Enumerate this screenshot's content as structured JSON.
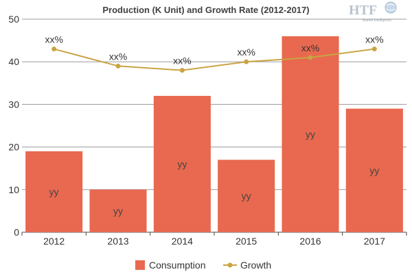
{
  "logo": {
    "text": "HTF",
    "subtitle": "Market Intelligence"
  },
  "chart_data": {
    "type": "bar",
    "title": "Production (K Unit) and Growth Rate (2012-2017)",
    "categories": [
      "2012",
      "2013",
      "2014",
      "2015",
      "2016",
      "2017"
    ],
    "ylim": [
      0,
      50
    ],
    "yticks": [
      0,
      10,
      20,
      30,
      40,
      50
    ],
    "grid": true,
    "legend_position": "bottom",
    "series": [
      {
        "name": "Consumption",
        "type": "bar",
        "color": "#e8694f",
        "values": [
          19,
          10,
          32,
          17,
          46,
          29
        ],
        "labels": [
          "yy",
          "yy",
          "yy",
          "yy",
          "yy",
          "yy"
        ]
      },
      {
        "name": "Growth",
        "type": "line",
        "color": "#c9a443",
        "values": [
          43,
          39,
          38,
          40,
          41,
          43
        ],
        "labels": [
          "xx%",
          "xx%",
          "xx%",
          "xx%",
          "xx%",
          "xx%"
        ]
      }
    ]
  }
}
